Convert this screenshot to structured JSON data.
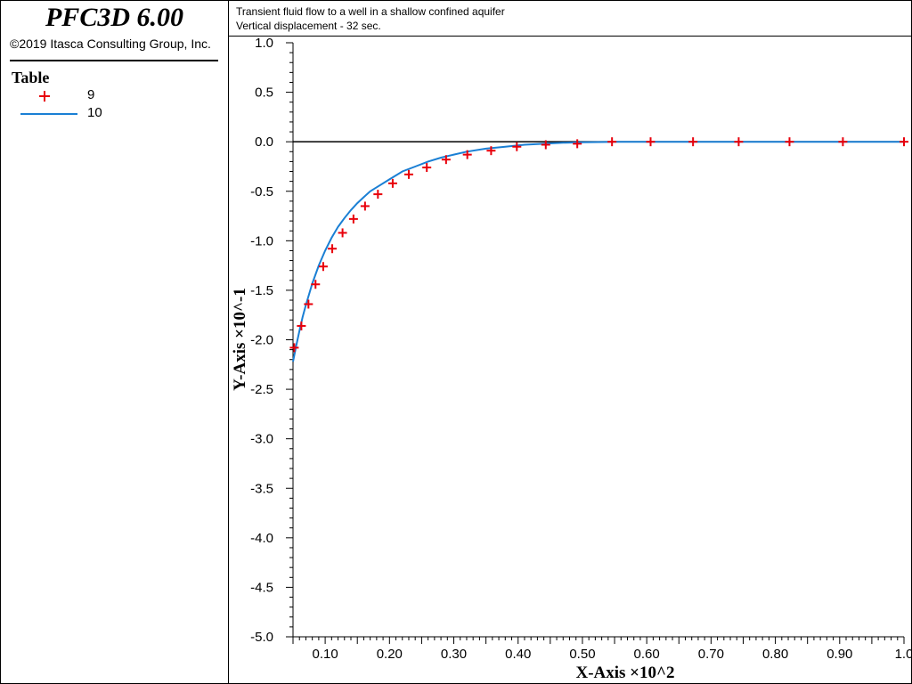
{
  "app": {
    "title": "PFC3D 6.00",
    "copyright": "©2019 Itasca Consulting Group, Inc."
  },
  "legend": {
    "title": "Table",
    "items": [
      {
        "label": "9",
        "marker": "plus",
        "color": "#e8000b"
      },
      {
        "label": "10",
        "marker": "line",
        "color": "#1a7fd4"
      }
    ]
  },
  "header": {
    "title": "Transient fluid flow to a well in a shallow confined aquifer",
    "subtitle": "Vertical displacement - 32 sec."
  },
  "chart_data": {
    "type": "line",
    "xlabel": "X-Axis ×10^2",
    "ylabel": "Y-Axis ×10^-1",
    "xlim": [
      0.05,
      1.0
    ],
    "ylim": [
      -5.0,
      1.0
    ],
    "xticks": [
      0.1,
      0.2,
      0.3,
      0.4,
      0.5,
      0.6,
      0.7,
      0.8,
      0.9,
      1.0
    ],
    "xtick_labels": [
      "0.10",
      "0.20",
      "0.30",
      "0.40",
      "0.50",
      "0.60",
      "0.70",
      "0.80",
      "0.90",
      "1.0"
    ],
    "yticks": [
      1.0,
      0.5,
      0.0,
      -0.5,
      -1.0,
      -1.5,
      -2.0,
      -2.5,
      -3.0,
      -3.5,
      -4.0,
      -4.5,
      -5.0
    ],
    "ytick_labels": [
      "1.0",
      "0.5",
      "0.0",
      "-0.5",
      "-1.0",
      "-1.5",
      "-2.0",
      "-2.5",
      "-3.0",
      "-3.5",
      "-4.0",
      "-4.5",
      "-5.0"
    ],
    "zero_line": true,
    "grid": false,
    "series": [
      {
        "name": "9",
        "style": "markers",
        "color": "#e8000b",
        "x": [
          0.052,
          0.063,
          0.074,
          0.085,
          0.097,
          0.111,
          0.127,
          0.144,
          0.162,
          0.182,
          0.205,
          0.23,
          0.258,
          0.288,
          0.321,
          0.358,
          0.398,
          0.443,
          0.492,
          0.546,
          0.606,
          0.672,
          0.743,
          0.822,
          0.905,
          1.0
        ],
        "y": [
          -2.08,
          -1.86,
          -1.64,
          -1.44,
          -1.26,
          -1.08,
          -0.92,
          -0.78,
          -0.65,
          -0.53,
          -0.42,
          -0.33,
          -0.26,
          -0.18,
          -0.13,
          -0.09,
          -0.05,
          -0.03,
          -0.02,
          0.0,
          0.0,
          0.0,
          0.0,
          0.0,
          0.0,
          0.0
        ]
      },
      {
        "name": "10",
        "style": "line",
        "color": "#1a7fd4",
        "x": [
          0.05,
          0.055,
          0.06,
          0.065,
          0.07,
          0.08,
          0.09,
          0.1,
          0.11,
          0.12,
          0.13,
          0.14,
          0.15,
          0.16,
          0.17,
          0.18,
          0.2,
          0.22,
          0.24,
          0.26,
          0.28,
          0.3,
          0.32,
          0.35,
          0.38,
          0.41,
          0.44,
          0.47,
          0.5,
          0.55,
          0.6,
          0.7,
          0.8,
          0.9,
          1.0
        ],
        "y": [
          -2.22,
          -2.06,
          -1.91,
          -1.77,
          -1.65,
          -1.43,
          -1.25,
          -1.1,
          -0.97,
          -0.86,
          -0.77,
          -0.69,
          -0.62,
          -0.56,
          -0.5,
          -0.46,
          -0.38,
          -0.3,
          -0.25,
          -0.2,
          -0.16,
          -0.13,
          -0.1,
          -0.07,
          -0.05,
          -0.03,
          -0.02,
          -0.01,
          -0.005,
          0.0,
          0.0,
          0.0,
          0.0,
          0.0,
          0.0
        ]
      }
    ]
  }
}
